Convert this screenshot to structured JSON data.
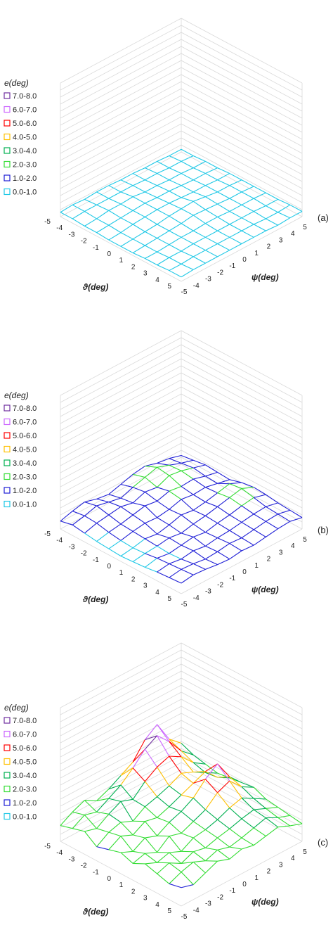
{
  "legend": {
    "title": "e(deg)",
    "ranges": [
      {
        "label": "7.0-8.0",
        "color": "#7030a0"
      },
      {
        "label": "6.0-7.0",
        "color": "#cc66ff"
      },
      {
        "label": "5.0-6.0",
        "color": "#ff0000"
      },
      {
        "label": "4.0-5.0",
        "color": "#ffc000"
      },
      {
        "label": "3.0-4.0",
        "color": "#00b050"
      },
      {
        "label": "2.0-3.0",
        "color": "#33dd33"
      },
      {
        "label": "1.0-2.0",
        "color": "#1f1fd6"
      },
      {
        "label": "0.0-1.0",
        "color": "#1fc8e6"
      }
    ]
  },
  "axes": {
    "theta_label": "ϑ(deg)",
    "psi_label": "ψ(deg)",
    "ticks": [
      "-5",
      "-4",
      "-3",
      "-2",
      "-1",
      "0",
      "1",
      "2",
      "3",
      "4",
      "5"
    ]
  },
  "chart_data": [
    {
      "type": "surface",
      "panel": "(a)",
      "x_name": "ϑ(deg)",
      "y_name": "ψ(deg)",
      "z_name": "e(deg)",
      "x": [
        -5,
        -4,
        -3,
        -2,
        -1,
        0,
        1,
        2,
        3,
        4,
        5
      ],
      "y": [
        -5,
        -4,
        -3,
        -2,
        -1,
        0,
        1,
        2,
        3,
        4,
        5
      ],
      "z": [
        [
          0.5,
          0.6,
          0.5,
          0.6,
          0.6,
          0.5,
          0.5,
          0.4,
          0.4,
          0.3,
          0.3
        ],
        [
          0.5,
          0.6,
          0.6,
          0.6,
          0.6,
          0.6,
          0.5,
          0.5,
          0.4,
          0.4,
          0.3
        ],
        [
          0.4,
          0.5,
          0.7,
          0.7,
          0.8,
          0.6,
          0.6,
          0.5,
          0.5,
          0.4,
          0.4
        ],
        [
          0.4,
          0.5,
          0.6,
          0.7,
          0.8,
          0.7,
          0.7,
          0.6,
          0.5,
          0.5,
          0.4
        ],
        [
          0.3,
          0.4,
          0.6,
          0.7,
          0.8,
          0.8,
          0.7,
          0.6,
          0.6,
          0.5,
          0.5
        ],
        [
          0.3,
          0.4,
          0.5,
          0.6,
          0.8,
          0.9,
          1.0,
          0.8,
          0.6,
          0.6,
          0.5
        ],
        [
          0.3,
          0.4,
          0.5,
          0.6,
          0.7,
          0.9,
          0.8,
          0.7,
          0.6,
          0.6,
          0.5
        ],
        [
          0.4,
          0.4,
          0.5,
          0.6,
          0.6,
          0.7,
          0.7,
          0.6,
          0.6,
          0.6,
          0.5
        ],
        [
          0.4,
          0.5,
          0.5,
          0.6,
          0.6,
          0.6,
          0.6,
          0.6,
          0.6,
          0.5,
          0.5
        ],
        [
          0.5,
          0.5,
          0.6,
          0.6,
          0.6,
          0.6,
          0.6,
          0.6,
          0.5,
          0.5,
          0.6
        ],
        [
          0.5,
          0.6,
          0.6,
          0.6,
          0.6,
          0.6,
          0.6,
          0.6,
          0.5,
          0.6,
          0.6
        ]
      ]
    },
    {
      "type": "surface",
      "panel": "(b)",
      "x_name": "ϑ(deg)",
      "y_name": "ψ(deg)",
      "z_name": "e(deg)",
      "x": [
        -5,
        -4,
        -3,
        -2,
        -1,
        0,
        1,
        2,
        3,
        4,
        5
      ],
      "y": [
        -5,
        -4,
        -3,
        -2,
        -1,
        0,
        1,
        2,
        3,
        4,
        5
      ],
      "z": [
        [
          0.9,
          1.3,
          1.6,
          1.2,
          1.0,
          1.4,
          1.8,
          2.0,
          1.6,
          1.4,
          1.0
        ],
        [
          1.2,
          1.5,
          1.9,
          1.6,
          1.3,
          1.8,
          2.2,
          2.6,
          2.1,
          1.6,
          1.2
        ],
        [
          1.0,
          1.4,
          1.6,
          1.8,
          1.5,
          2.0,
          1.8,
          2.4,
          2.2,
          1.8,
          1.4
        ],
        [
          0.8,
          1.1,
          1.3,
          1.6,
          1.9,
          1.7,
          2.1,
          1.9,
          2.0,
          1.6,
          1.3
        ],
        [
          0.7,
          0.9,
          1.2,
          1.4,
          1.3,
          1.5,
          1.9,
          1.7,
          1.8,
          1.5,
          1.2
        ],
        [
          0.6,
          0.8,
          1.1,
          0.9,
          1.2,
          1.6,
          1.4,
          1.6,
          1.9,
          2.2,
          1.6
        ],
        [
          0.7,
          0.9,
          1.0,
          1.2,
          1.0,
          1.3,
          1.5,
          1.8,
          2.1,
          2.4,
          1.8
        ],
        [
          0.8,
          1.1,
          0.9,
          1.1,
          1.3,
          1.1,
          1.4,
          1.6,
          1.9,
          2.1,
          1.7
        ],
        [
          1.0,
          1.2,
          1.0,
          1.2,
          1.0,
          1.2,
          1.3,
          1.5,
          1.7,
          1.8,
          1.5
        ],
        [
          1.1,
          1.3,
          1.2,
          1.0,
          1.1,
          1.3,
          1.2,
          1.4,
          1.6,
          1.7,
          1.4
        ],
        [
          1.2,
          1.4,
          1.3,
          1.1,
          1.0,
          1.2,
          1.1,
          1.3,
          1.5,
          1.6,
          1.3
        ]
      ]
    },
    {
      "type": "surface",
      "panel": "(c)",
      "x_name": "ϑ(deg)",
      "y_name": "ψ(deg)",
      "z_name": "e(deg)",
      "x": [
        -5,
        -4,
        -3,
        -2,
        -1,
        0,
        1,
        2,
        3,
        4,
        5
      ],
      "y": [
        -5,
        -4,
        -3,
        -2,
        -1,
        0,
        1,
        2,
        3,
        4,
        5
      ],
      "z": [
        [
          1.8,
          2.6,
          3.2,
          2.4,
          3.0,
          3.8,
          4.6,
          6.4,
          7.4,
          5.0,
          3.8
        ],
        [
          2.2,
          3.0,
          2.6,
          3.4,
          4.2,
          5.4,
          6.8,
          7.6,
          6.2,
          4.4,
          3.2
        ],
        [
          2.6,
          2.2,
          3.1,
          3.8,
          3.3,
          4.6,
          5.5,
          6.0,
          5.2,
          3.8,
          2.9
        ],
        [
          1.6,
          2.5,
          2.9,
          2.3,
          3.2,
          3.6,
          4.1,
          4.8,
          4.2,
          3.4,
          2.6
        ],
        [
          2.0,
          2.8,
          2.2,
          3.0,
          2.7,
          3.2,
          3.8,
          4.4,
          5.0,
          3.6,
          2.8
        ],
        [
          2.4,
          1.8,
          2.6,
          2.1,
          2.9,
          3.4,
          4.2,
          5.6,
          6.6,
          4.4,
          3.0
        ],
        [
          1.9,
          2.3,
          1.7,
          2.8,
          2.4,
          3.0,
          3.6,
          4.8,
          5.4,
          4.0,
          3.2
        ],
        [
          2.6,
          2.0,
          2.4,
          1.8,
          2.6,
          2.8,
          3.2,
          3.8,
          4.2,
          3.4,
          2.6
        ],
        [
          2.2,
          2.7,
          1.9,
          2.5,
          2.2,
          2.6,
          2.9,
          3.3,
          3.6,
          3.0,
          2.4
        ],
        [
          1.8,
          2.4,
          2.8,
          2.2,
          2.7,
          2.3,
          2.6,
          3.0,
          3.4,
          2.7,
          2.2
        ],
        [
          2.1,
          1.7,
          2.3,
          2.9,
          2.4,
          2.8,
          2.5,
          2.8,
          3.1,
          2.5,
          2.0
        ]
      ]
    }
  ]
}
